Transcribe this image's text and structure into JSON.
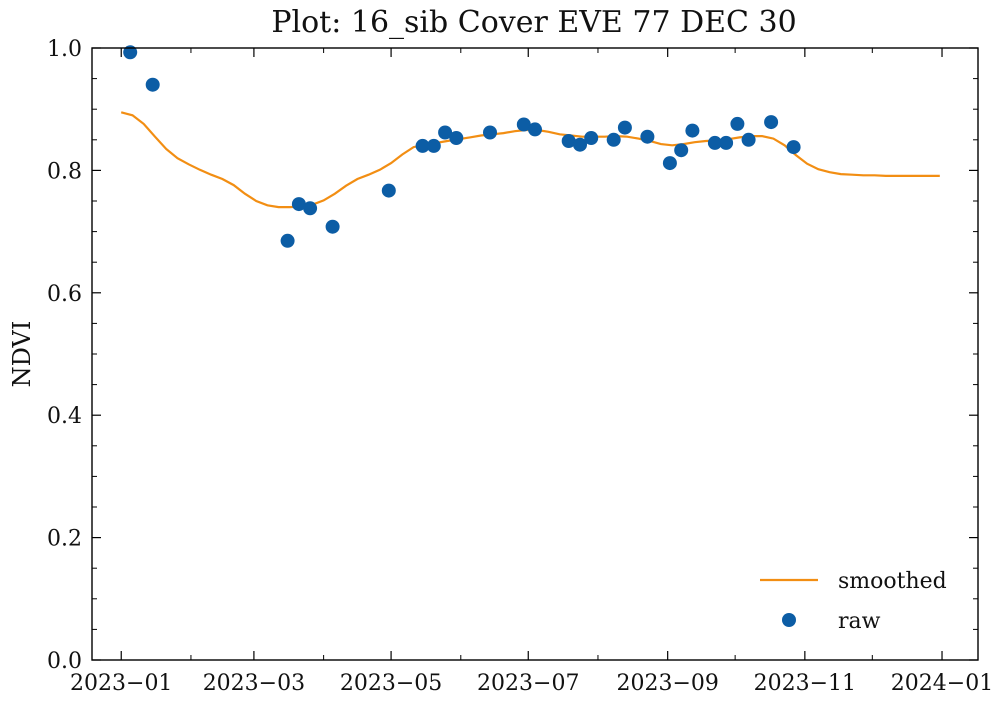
{
  "chart_data": {
    "type": "scatter",
    "title": "Plot: 16_sib Cover EVE 77 DEC 30",
    "xlabel": "",
    "ylabel": "NDVI",
    "xlim": [
      "2022-12-19",
      "2024-01-17"
    ],
    "ylim": [
      0.0,
      1.0
    ],
    "x_ticks": [
      "2023-01-01",
      "2023-03-01",
      "2023-05-01",
      "2023-07-01",
      "2023-09-01",
      "2023-11-01",
      "2024-01-01"
    ],
    "x_tick_labels": [
      "2023−01",
      "2023−03",
      "2023−05",
      "2023−07",
      "2023−09",
      "2023−11",
      "2024−01"
    ],
    "y_ticks": [
      0.0,
      0.2,
      0.4,
      0.6,
      0.8,
      1.0
    ],
    "y_tick_labels": [
      "0.0",
      "0.2",
      "0.4",
      "0.6",
      "0.8",
      "1.0"
    ],
    "grid": false,
    "legend": {
      "position": "bottom-right",
      "entries": [
        "smoothed",
        "raw"
      ]
    },
    "series": [
      {
        "name": "smoothed",
        "type": "line",
        "color": "#f28e13",
        "points": [
          {
            "x": "2023-01-01",
            "y": 0.895
          },
          {
            "x": "2023-01-06",
            "y": 0.89
          },
          {
            "x": "2023-01-11",
            "y": 0.876
          },
          {
            "x": "2023-01-16",
            "y": 0.855
          },
          {
            "x": "2023-01-21",
            "y": 0.835
          },
          {
            "x": "2023-01-26",
            "y": 0.82
          },
          {
            "x": "2023-01-31",
            "y": 0.81
          },
          {
            "x": "2023-02-05",
            "y": 0.801
          },
          {
            "x": "2023-02-10",
            "y": 0.793
          },
          {
            "x": "2023-02-15",
            "y": 0.786
          },
          {
            "x": "2023-02-20",
            "y": 0.776
          },
          {
            "x": "2023-02-25",
            "y": 0.762
          },
          {
            "x": "2023-03-02",
            "y": 0.75
          },
          {
            "x": "2023-03-07",
            "y": 0.743
          },
          {
            "x": "2023-03-12",
            "y": 0.74
          },
          {
            "x": "2023-03-17",
            "y": 0.74
          },
          {
            "x": "2023-03-22",
            "y": 0.741
          },
          {
            "x": "2023-03-27",
            "y": 0.744
          },
          {
            "x": "2023-04-01",
            "y": 0.751
          },
          {
            "x": "2023-04-06",
            "y": 0.762
          },
          {
            "x": "2023-04-11",
            "y": 0.775
          },
          {
            "x": "2023-04-16",
            "y": 0.786
          },
          {
            "x": "2023-04-21",
            "y": 0.793
          },
          {
            "x": "2023-04-26",
            "y": 0.801
          },
          {
            "x": "2023-05-01",
            "y": 0.812
          },
          {
            "x": "2023-05-06",
            "y": 0.826
          },
          {
            "x": "2023-05-11",
            "y": 0.838
          },
          {
            "x": "2023-05-16",
            "y": 0.842
          },
          {
            "x": "2023-05-21",
            "y": 0.845
          },
          {
            "x": "2023-05-26",
            "y": 0.848
          },
          {
            "x": "2023-05-31",
            "y": 0.851
          },
          {
            "x": "2023-06-05",
            "y": 0.854
          },
          {
            "x": "2023-06-10",
            "y": 0.857
          },
          {
            "x": "2023-06-15",
            "y": 0.859
          },
          {
            "x": "2023-06-20",
            "y": 0.861
          },
          {
            "x": "2023-06-25",
            "y": 0.864
          },
          {
            "x": "2023-06-30",
            "y": 0.866
          },
          {
            "x": "2023-07-05",
            "y": 0.866
          },
          {
            "x": "2023-07-10",
            "y": 0.863
          },
          {
            "x": "2023-07-15",
            "y": 0.859
          },
          {
            "x": "2023-07-20",
            "y": 0.857
          },
          {
            "x": "2023-07-25",
            "y": 0.855
          },
          {
            "x": "2023-07-30",
            "y": 0.855
          },
          {
            "x": "2023-08-04",
            "y": 0.855
          },
          {
            "x": "2023-08-09",
            "y": 0.856
          },
          {
            "x": "2023-08-14",
            "y": 0.855
          },
          {
            "x": "2023-08-19",
            "y": 0.852
          },
          {
            "x": "2023-08-24",
            "y": 0.848
          },
          {
            "x": "2023-08-29",
            "y": 0.843
          },
          {
            "x": "2023-09-03",
            "y": 0.841
          },
          {
            "x": "2023-09-08",
            "y": 0.843
          },
          {
            "x": "2023-09-13",
            "y": 0.846
          },
          {
            "x": "2023-09-18",
            "y": 0.848
          },
          {
            "x": "2023-09-23",
            "y": 0.849
          },
          {
            "x": "2023-09-28",
            "y": 0.851
          },
          {
            "x": "2023-10-03",
            "y": 0.854
          },
          {
            "x": "2023-10-08",
            "y": 0.856
          },
          {
            "x": "2023-10-13",
            "y": 0.856
          },
          {
            "x": "2023-10-18",
            "y": 0.852
          },
          {
            "x": "2023-10-23",
            "y": 0.841
          },
          {
            "x": "2023-10-28",
            "y": 0.825
          },
          {
            "x": "2023-11-02",
            "y": 0.811
          },
          {
            "x": "2023-11-07",
            "y": 0.802
          },
          {
            "x": "2023-11-12",
            "y": 0.797
          },
          {
            "x": "2023-11-17",
            "y": 0.794
          },
          {
            "x": "2023-11-22",
            "y": 0.793
          },
          {
            "x": "2023-11-27",
            "y": 0.792
          },
          {
            "x": "2023-12-02",
            "y": 0.792
          },
          {
            "x": "2023-12-07",
            "y": 0.791
          },
          {
            "x": "2023-12-12",
            "y": 0.791
          },
          {
            "x": "2023-12-17",
            "y": 0.791
          },
          {
            "x": "2023-12-22",
            "y": 0.791
          },
          {
            "x": "2023-12-27",
            "y": 0.791
          },
          {
            "x": "2023-12-31",
            "y": 0.791
          }
        ]
      },
      {
        "name": "raw",
        "type": "scatter",
        "color": "#0c5da5",
        "points": [
          {
            "x": "2023-01-05",
            "y": 0.993
          },
          {
            "x": "2023-01-15",
            "y": 0.94
          },
          {
            "x": "2023-03-16",
            "y": 0.685
          },
          {
            "x": "2023-03-21",
            "y": 0.745
          },
          {
            "x": "2023-03-26",
            "y": 0.738
          },
          {
            "x": "2023-04-05",
            "y": 0.708
          },
          {
            "x": "2023-04-30",
            "y": 0.767
          },
          {
            "x": "2023-05-15",
            "y": 0.84
          },
          {
            "x": "2023-05-20",
            "y": 0.84
          },
          {
            "x": "2023-05-25",
            "y": 0.862
          },
          {
            "x": "2023-05-30",
            "y": 0.853
          },
          {
            "x": "2023-06-14",
            "y": 0.862
          },
          {
            "x": "2023-06-29",
            "y": 0.875
          },
          {
            "x": "2023-07-04",
            "y": 0.867
          },
          {
            "x": "2023-07-19",
            "y": 0.848
          },
          {
            "x": "2023-07-24",
            "y": 0.842
          },
          {
            "x": "2023-07-29",
            "y": 0.853
          },
          {
            "x": "2023-08-08",
            "y": 0.85
          },
          {
            "x": "2023-08-13",
            "y": 0.87
          },
          {
            "x": "2023-08-23",
            "y": 0.855
          },
          {
            "x": "2023-09-02",
            "y": 0.812
          },
          {
            "x": "2023-09-07",
            "y": 0.833
          },
          {
            "x": "2023-09-12",
            "y": 0.865
          },
          {
            "x": "2023-09-22",
            "y": 0.845
          },
          {
            "x": "2023-09-27",
            "y": 0.845
          },
          {
            "x": "2023-10-02",
            "y": 0.876
          },
          {
            "x": "2023-10-07",
            "y": 0.85
          },
          {
            "x": "2023-10-17",
            "y": 0.879
          },
          {
            "x": "2023-10-27",
            "y": 0.838
          }
        ]
      }
    ]
  }
}
